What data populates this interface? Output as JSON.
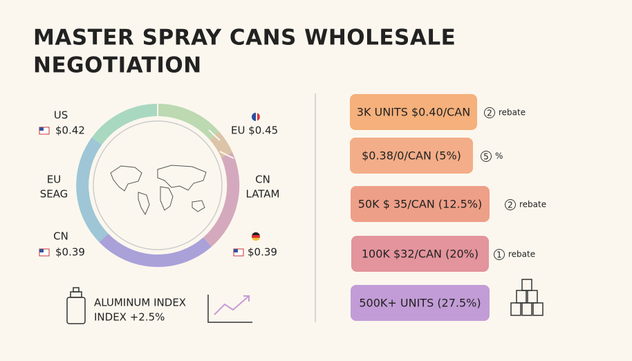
{
  "header": {
    "title_lines": [
      "MASTER SPRAY CANS WHOLESALE",
      "NEGOTIATION"
    ]
  },
  "markets": {
    "top_left": [
      "US",
      "$0.42"
    ],
    "top_right": [
      "EU $0.45"
    ],
    "mid_left": [
      "EU",
      "SEAG"
    ],
    "mid_right": [
      "CN",
      "LATAM"
    ],
    "bottom_left": [
      "CN",
      "$0.39"
    ],
    "bottom_right": [
      "$0.39"
    ]
  },
  "index": {
    "lines": [
      "ALUMINUM INDEX",
      "INDEX +2.5%"
    ]
  },
  "tiers": [
    {
      "label": "3K UNITS $0.40/CAN",
      "badge": "2",
      "note": "rebate"
    },
    {
      "label": "$0.38/0/CAN (5%)",
      "badge": "5",
      "note": "%"
    },
    {
      "label": "50K $ 35/CAN (12.5%)",
      "badge": "2",
      "note": "rebate"
    },
    {
      "label": "100K $32/CAN (20%)",
      "badge": "1",
      "note": "rebate"
    },
    {
      "label": "500K+ UNITS (27.5%)"
    }
  ]
}
